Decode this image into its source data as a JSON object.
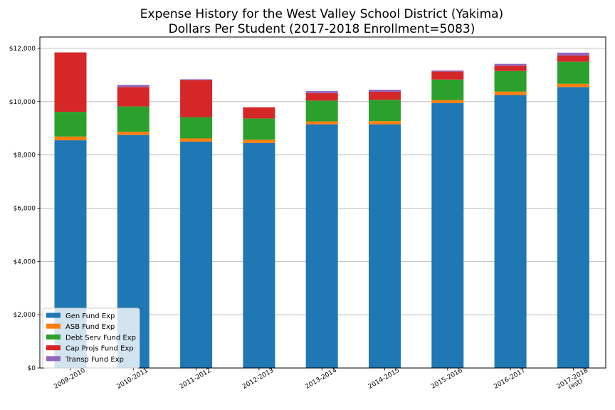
{
  "chart_data": {
    "type": "bar",
    "stacked": true,
    "title": "Expense History for the West Valley School District (Yakima)",
    "subtitle": "Dollars Per Student (2017-2018 Enrollment=5083)",
    "xlabel": "",
    "ylabel": "",
    "ylim": [
      0,
      12000
    ],
    "yticks": [
      "$0",
      "$2,000",
      "$4,000",
      "$6,000",
      "$8,000",
      "$10,000",
      "$12,000"
    ],
    "ytick_values": [
      0,
      2000,
      4000,
      6000,
      8000,
      10000,
      12000
    ],
    "grid": "horizontal",
    "legend_position": "lower-left",
    "categories": [
      "2009-2010",
      "2010-2011",
      "2011-2012",
      "2012-2013",
      "2013-2014",
      "2014-2015",
      "2015-2016",
      "2016-2017",
      [
        "2017-2018",
        "(est)"
      ]
    ],
    "series": [
      {
        "name": "Gen Fund Exp",
        "color": "#1f77b4",
        "values": [
          8550,
          8750,
          8500,
          8450,
          9150,
          9150,
          9950,
          10250,
          10550
        ]
      },
      {
        "name": "ASB Fund Exp",
        "color": "#ff7f0e",
        "values": [
          140,
          120,
          120,
          120,
          110,
          120,
          110,
          130,
          120
        ]
      },
      {
        "name": "Debt Serv Fund Exp",
        "color": "#2ca02c",
        "values": [
          930,
          950,
          800,
          800,
          780,
          800,
          770,
          770,
          830
        ]
      },
      {
        "name": "Cap Projs Fund Exp",
        "color": "#d62728",
        "values": [
          2230,
          730,
          1390,
          420,
          280,
          300,
          300,
          200,
          230
        ]
      },
      {
        "name": "Transp Fund Exp",
        "color": "#9467bd",
        "values": [
          0,
          80,
          30,
          0,
          80,
          80,
          40,
          70,
          110
        ]
      }
    ]
  }
}
